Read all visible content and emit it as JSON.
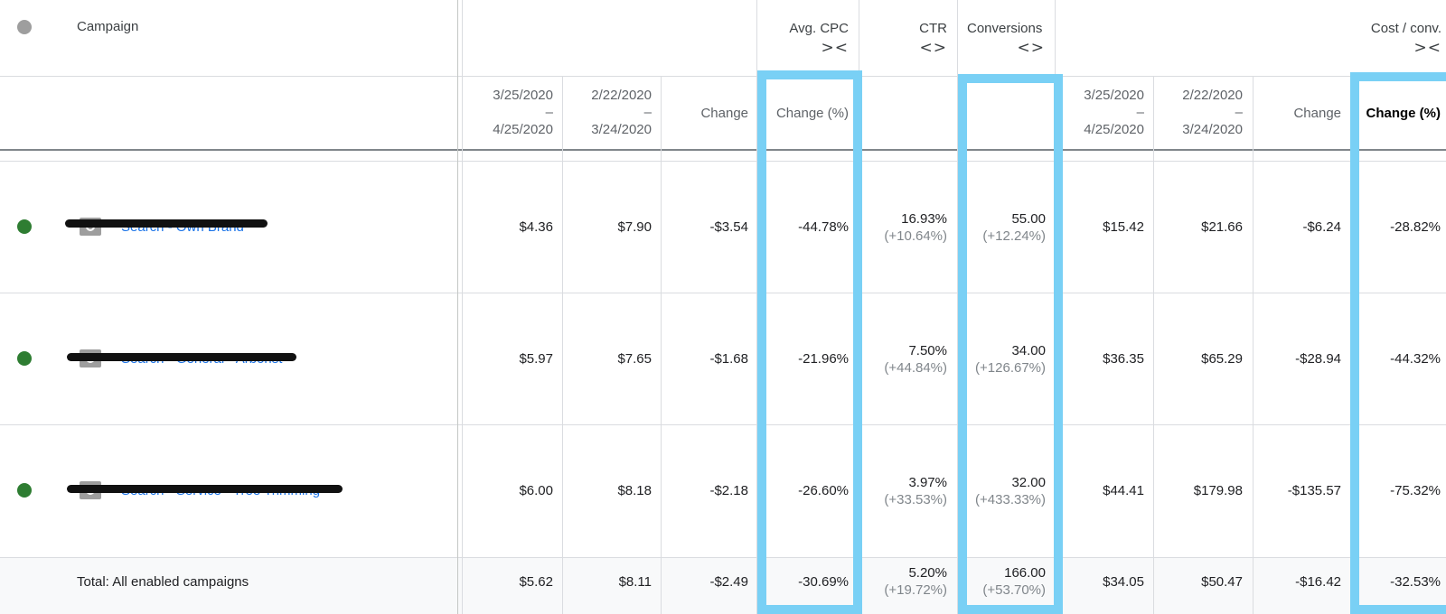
{
  "header": {
    "campaign_label": "Campaign",
    "avg_cpc": "Avg. CPC",
    "ctr": "CTR",
    "conversions": "Conversions",
    "cost_conv": "Cost / conv.",
    "collapse_arrows": "><",
    "expand_arrows": "<>"
  },
  "subheader": {
    "range1": [
      "3/25/2020",
      "–",
      "4/25/2020"
    ],
    "range2": [
      "2/22/2020",
      "–",
      "3/24/2020"
    ],
    "change": "Change",
    "change_pct": "Change (%)"
  },
  "rows": [
    {
      "campaign": "Search - Own Brand",
      "status_color": "#2e7d32",
      "cpc_1": "$4.36",
      "cpc_2": "$7.90",
      "cpc_change": "-$3.54",
      "cpc_change_pct": "-44.78%",
      "ctr": "16.93%",
      "ctr_delta": "(+10.64%)",
      "conv": "55.00",
      "conv_delta": "(+12.24%)",
      "cost_1": "$15.42",
      "cost_2": "$21.66",
      "cost_change": "-$6.24",
      "cost_change_pct": "-28.82%"
    },
    {
      "campaign": "Search - General - Arborist",
      "status_color": "#2e7d32",
      "cpc_1": "$5.97",
      "cpc_2": "$7.65",
      "cpc_change": "-$1.68",
      "cpc_change_pct": "-21.96%",
      "ctr": "7.50%",
      "ctr_delta": "(+44.84%)",
      "conv": "34.00",
      "conv_delta": "(+126.67%)",
      "cost_1": "$36.35",
      "cost_2": "$65.29",
      "cost_change": "-$28.94",
      "cost_change_pct": "-44.32%"
    },
    {
      "campaign": "Search - Service - Tree Trimming",
      "status_color": "#2e7d32",
      "cpc_1": "$6.00",
      "cpc_2": "$8.18",
      "cpc_change": "-$2.18",
      "cpc_change_pct": "-26.60%",
      "ctr": "3.97%",
      "ctr_delta": "(+33.53%)",
      "conv": "32.00",
      "conv_delta": "(+433.33%)",
      "cost_1": "$44.41",
      "cost_2": "$179.98",
      "cost_change": "-$135.57",
      "cost_change_pct": "-75.32%"
    }
  ],
  "total": {
    "label": "Total: All enabled campaigns",
    "cpc_1": "$5.62",
    "cpc_2": "$8.11",
    "cpc_change": "-$2.49",
    "cpc_change_pct": "-30.69%",
    "ctr": "5.20%",
    "ctr_delta": "(+19.72%)",
    "conv": "166.00",
    "conv_delta": "(+53.70%)",
    "cost_1": "$34.05",
    "cost_2": "$50.47",
    "cost_change": "-$16.42",
    "cost_change_pct": "-32.53%"
  },
  "colors": {
    "highlight": "#79d0f5",
    "header_status_dot": "#9e9e9e",
    "link": "#1a73e8"
  }
}
